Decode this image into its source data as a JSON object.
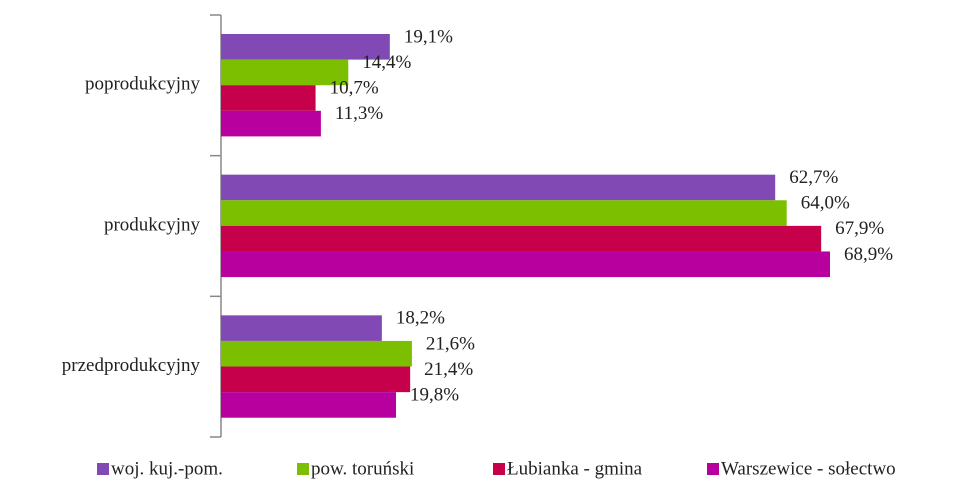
{
  "chart_data": {
    "type": "barh",
    "categories": [
      "poprodukcyjny",
      "produkcyjny",
      "przedprodukcyjny"
    ],
    "series": [
      {
        "name": "woj. kuj.-pom.",
        "color": "#8049b3",
        "values": [
          19.1,
          62.7,
          18.2
        ],
        "value_labels": [
          "19,1%",
          "62,7%",
          "18,2%"
        ]
      },
      {
        "name": "pow. toruński",
        "color": "#7bbf00",
        "values": [
          14.4,
          64.0,
          21.6
        ],
        "value_labels": [
          "14,4%",
          "64,0%",
          "21,6%"
        ]
      },
      {
        "name": "Łubianka - gmina",
        "color": "#c6004b",
        "values": [
          10.7,
          67.9,
          21.4
        ],
        "value_labels": [
          "10,7%",
          "67,9%",
          "21,4%"
        ]
      },
      {
        "name": "Warszewice - sołectwo",
        "color": "#b8009e",
        "values": [
          11.3,
          68.9,
          19.8
        ],
        "value_labels": [
          "11,3%",
          "68,9%",
          "19,8%"
        ]
      }
    ],
    "legend": "bottom"
  }
}
